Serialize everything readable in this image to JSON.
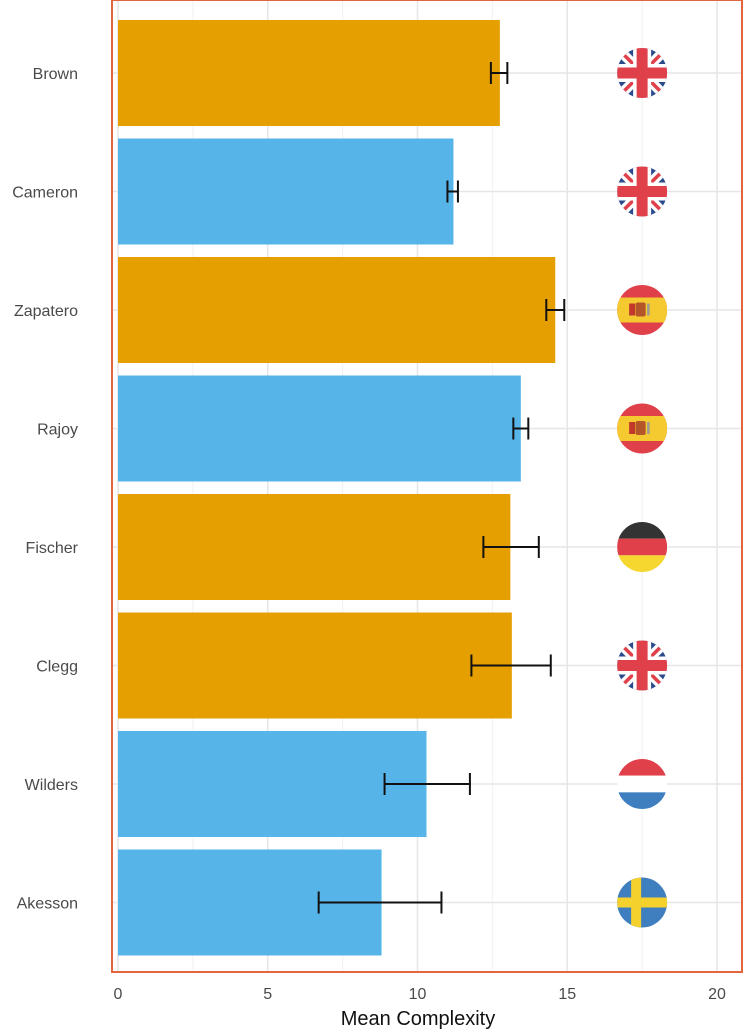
{
  "chart_data": {
    "type": "bar",
    "orientation": "horizontal",
    "xlabel": "Mean Complexity",
    "ylabel": "",
    "xlim": [
      0,
      20
    ],
    "xticks": [
      0,
      5,
      10,
      15,
      20
    ],
    "grid": true,
    "categories": [
      "Brown",
      "Cameron",
      "Zapatero",
      "Rajoy",
      "Fischer",
      "Clegg",
      "Wilders",
      "Akesson"
    ],
    "values": [
      12.75,
      11.2,
      14.6,
      13.45,
      13.1,
      13.15,
      10.3,
      8.8
    ],
    "error_low": [
      12.45,
      11.0,
      14.3,
      13.2,
      12.2,
      11.8,
      8.9,
      6.7
    ],
    "error_high": [
      13.0,
      11.35,
      14.9,
      13.7,
      14.05,
      14.45,
      11.75,
      10.8
    ],
    "bar_colors": [
      "#E69F00",
      "#56B4E9",
      "#E69F00",
      "#56B4E9",
      "#E69F00",
      "#E69F00",
      "#56B4E9",
      "#56B4E9"
    ],
    "flags": [
      "uk-flag-icon",
      "uk-flag-icon",
      "spain-flag-icon",
      "spain-flag-icon",
      "germany-flag-icon",
      "uk-flag-icon",
      "netherlands-flag-icon",
      "sweden-flag-icon"
    ],
    "flag_x": 17.5,
    "frame_color": "#E2653F"
  }
}
